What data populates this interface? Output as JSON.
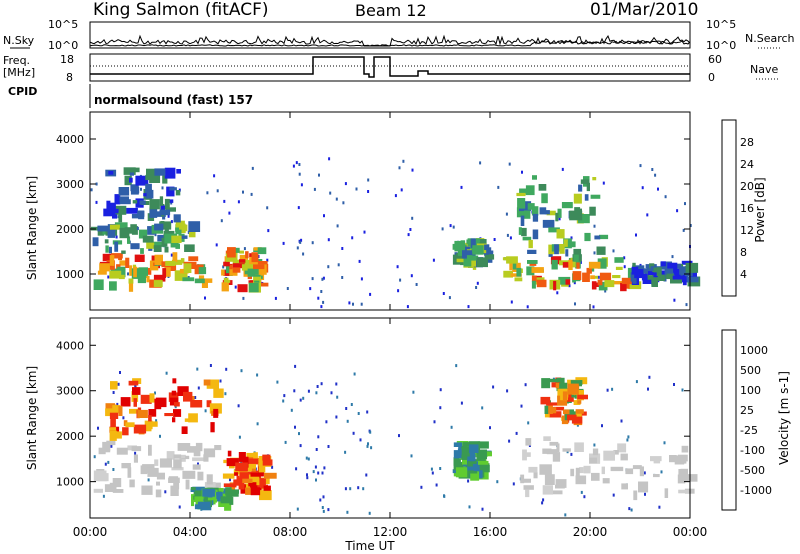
{
  "header": {
    "station": "King Salmon (fitACF)",
    "beam": "Beam 12",
    "date": "01/Mar/2010"
  },
  "top_panel": {
    "nsky_label": "N.Sky",
    "nsky_ticks": [
      "10^5",
      "10^0"
    ],
    "nsearch_label": "N.Search",
    "nsearch_ticks": [
      "10^5",
      "10^0"
    ],
    "freq_label": "Freq.",
    "freq_unit": "[MHz]",
    "freq_ticks": [
      "18",
      "8"
    ],
    "nave_label": "Nave",
    "nave_ticks": [
      "60",
      "0"
    ],
    "cpid_label": "CPID",
    "cpid_value": "normalsound (fast) 157"
  },
  "colors": {
    "power": [
      "#1a20e0",
      "#2f5fa8",
      "#3d8a5a",
      "#3fa85f",
      "#b8cc20",
      "#f4a312",
      "#f05a10",
      "#e01010"
    ],
    "velocity": [
      "#2030c8",
      "#2e7aa8",
      "#3a9a50",
      "#60cc30",
      "#c4c4c4",
      "#f4b810",
      "#f08010",
      "#f03010",
      "#e00000"
    ]
  },
  "chart_data": [
    {
      "type": "heatmap",
      "title": "Power",
      "xlabel": "Time UT",
      "ylabel": "Slant Range [km]",
      "x_ticks": [
        "00:00",
        "04:00",
        "08:00",
        "12:00",
        "16:00",
        "20:00",
        "00:00"
      ],
      "xlim_hours": [
        0,
        24
      ],
      "ylim": [
        200,
        4600
      ],
      "y_ticks": [
        1000,
        2000,
        3000,
        4000
      ],
      "colorbar_label": "Power [dB]",
      "colorbar_ticks": [
        "28",
        "24",
        "20",
        "16",
        "12",
        "8",
        "4"
      ],
      "regions": [
        {
          "t0": 0.0,
          "t1": 4.6,
          "r0": 800,
          "r1": 1500,
          "level": "high"
        },
        {
          "t0": 0.0,
          "t1": 4.0,
          "r0": 1500,
          "r1": 2200,
          "level": "medium"
        },
        {
          "t0": 0.5,
          "t1": 3.5,
          "r0": 2300,
          "r1": 3400,
          "level": "low"
        },
        {
          "t0": 5.2,
          "t1": 6.8,
          "r0": 750,
          "r1": 1600,
          "level": "high"
        },
        {
          "t0": 14.5,
          "t1": 15.8,
          "r0": 1300,
          "r1": 1800,
          "level": "medium"
        },
        {
          "t0": 16.5,
          "t1": 21.6,
          "r0": 800,
          "r1": 1400,
          "level": "high"
        },
        {
          "t0": 17.0,
          "t1": 20.5,
          "r0": 1400,
          "r1": 3200,
          "level": "medium"
        },
        {
          "t0": 21.6,
          "t1": 24.0,
          "r0": 900,
          "r1": 1300,
          "level": "low"
        }
      ]
    },
    {
      "type": "heatmap",
      "title": "Velocity",
      "xlabel": "Time UT",
      "ylabel": "Slant Range [km]",
      "x_ticks": [
        "00:00",
        "04:00",
        "08:00",
        "12:00",
        "16:00",
        "20:00",
        "00:00"
      ],
      "xlim_hours": [
        0,
        24
      ],
      "ylim": [
        200,
        4600
      ],
      "y_ticks": [
        1000,
        2000,
        3000,
        4000
      ],
      "colorbar_label": "Velocity [m s-1]",
      "colorbar_ticks": [
        "1000",
        "500",
        "100",
        "25",
        "-25",
        "-100",
        "-500",
        "-1000"
      ],
      "regions": [
        {
          "t0": 0.0,
          "t1": 5.0,
          "r0": 800,
          "r1": 1900,
          "level": "ground"
        },
        {
          "t0": 0.5,
          "t1": 5.0,
          "r0": 2100,
          "r1": 3300,
          "level": "negative"
        },
        {
          "t0": 5.3,
          "t1": 7.0,
          "r0": 800,
          "r1": 1700,
          "level": "negative"
        },
        {
          "t0": 4.0,
          "t1": 5.6,
          "r0": 500,
          "r1": 900,
          "level": "positive"
        },
        {
          "t0": 14.5,
          "t1": 15.6,
          "r0": 1200,
          "r1": 1900,
          "level": "positive"
        },
        {
          "t0": 17.2,
          "t1": 24.0,
          "r0": 800,
          "r1": 2000,
          "level": "ground"
        },
        {
          "t0": 18.0,
          "t1": 19.5,
          "r0": 2400,
          "r1": 3300,
          "level": "mixed"
        }
      ]
    }
  ]
}
